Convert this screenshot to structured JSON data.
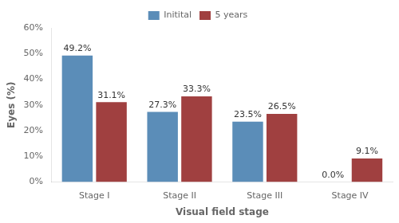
{
  "chart_data": {
    "type": "bar",
    "xlabel": "Visual field stage",
    "ylabel": "Eyes (%)",
    "categories": [
      "Stage I",
      "Stage II",
      "Stage III",
      "Stage IV"
    ],
    "series": [
      {
        "name": "Initital",
        "color": "#5B8DB8",
        "values": [
          49.2,
          27.3,
          23.5,
          0.0
        ],
        "value_labels": [
          "49.2%",
          "27.3%",
          "23.5%",
          "0.0%"
        ]
      },
      {
        "name": "5 years",
        "color": "#A04040",
        "values": [
          31.1,
          33.3,
          26.5,
          9.1
        ],
        "value_labels": [
          "31.1%",
          "33.3%",
          "26.5%",
          "9.1%"
        ]
      }
    ],
    "ylim": [
      0,
      60
    ],
    "yticks": [
      {
        "value": 0,
        "label": "0%"
      },
      {
        "value": 10,
        "label": "10%"
      },
      {
        "value": 20,
        "label": "20%"
      },
      {
        "value": 30,
        "label": "30%"
      },
      {
        "value": 40,
        "label": "40%"
      },
      {
        "value": 50,
        "label": "50%"
      },
      {
        "value": 60,
        "label": "60%"
      }
    ],
    "grid": false,
    "legend": "top",
    "data_labels": true
  }
}
